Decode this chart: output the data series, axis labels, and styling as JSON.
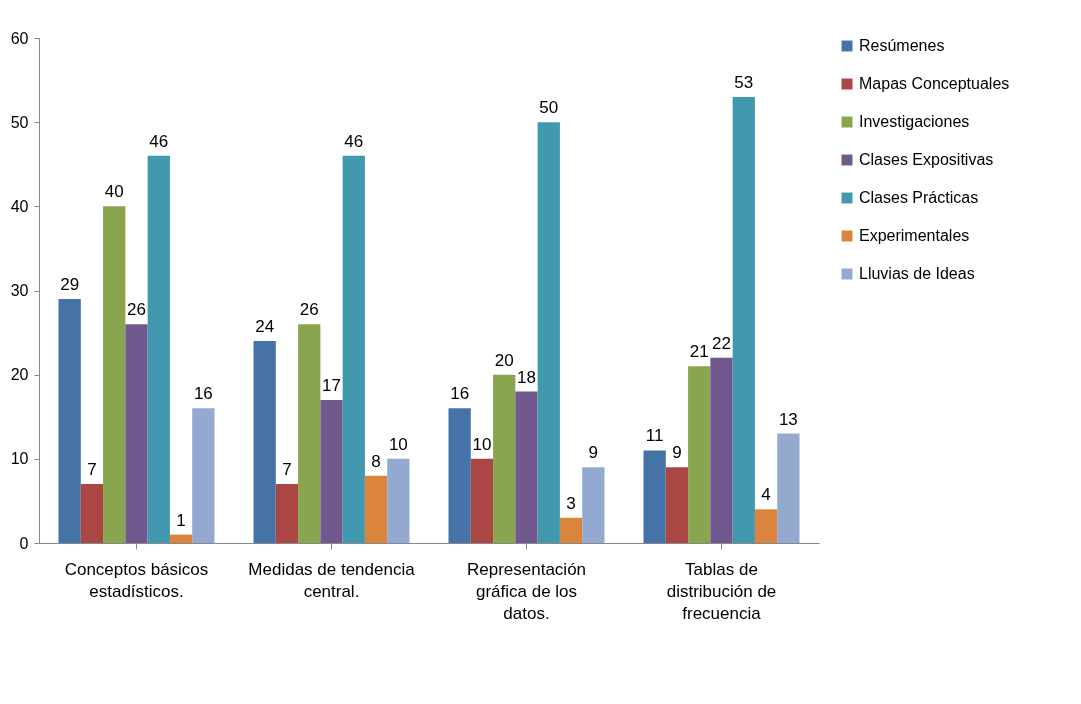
{
  "chart_data": {
    "type": "bar",
    "categories": [
      "Conceptos básicos estadísticos.",
      "Medidas de tendencia central.",
      "Representación gráfica de los datos.",
      "Tablas de distribución de frecuencia"
    ],
    "series": [
      {
        "name": "Resúmenes",
        "color": "#4572a7",
        "values": [
          29,
          24,
          16,
          11
        ]
      },
      {
        "name": "Mapas Conceptuales",
        "color": "#aa4643",
        "values": [
          7,
          7,
          10,
          9
        ]
      },
      {
        "name": "Investigaciones",
        "color": "#89a54e",
        "values": [
          40,
          26,
          20,
          21
        ]
      },
      {
        "name": "Clases Expositivas",
        "color": "#71588f",
        "values": [
          26,
          17,
          18,
          22
        ]
      },
      {
        "name": "Clases Prácticas",
        "color": "#4198af",
        "values": [
          46,
          46,
          50,
          53
        ]
      },
      {
        "name": "Experimentales",
        "color": "#db843d",
        "values": [
          1,
          8,
          3,
          4
        ]
      },
      {
        "name": "Lluvias de Ideas",
        "color": "#93a9cf",
        "values": [
          16,
          10,
          9,
          13
        ]
      }
    ],
    "ylim": [
      0,
      60
    ],
    "yticks": [
      0,
      10,
      20,
      30,
      40,
      50,
      60
    ],
    "grid": false,
    "legend": "right",
    "data_labels": true
  }
}
